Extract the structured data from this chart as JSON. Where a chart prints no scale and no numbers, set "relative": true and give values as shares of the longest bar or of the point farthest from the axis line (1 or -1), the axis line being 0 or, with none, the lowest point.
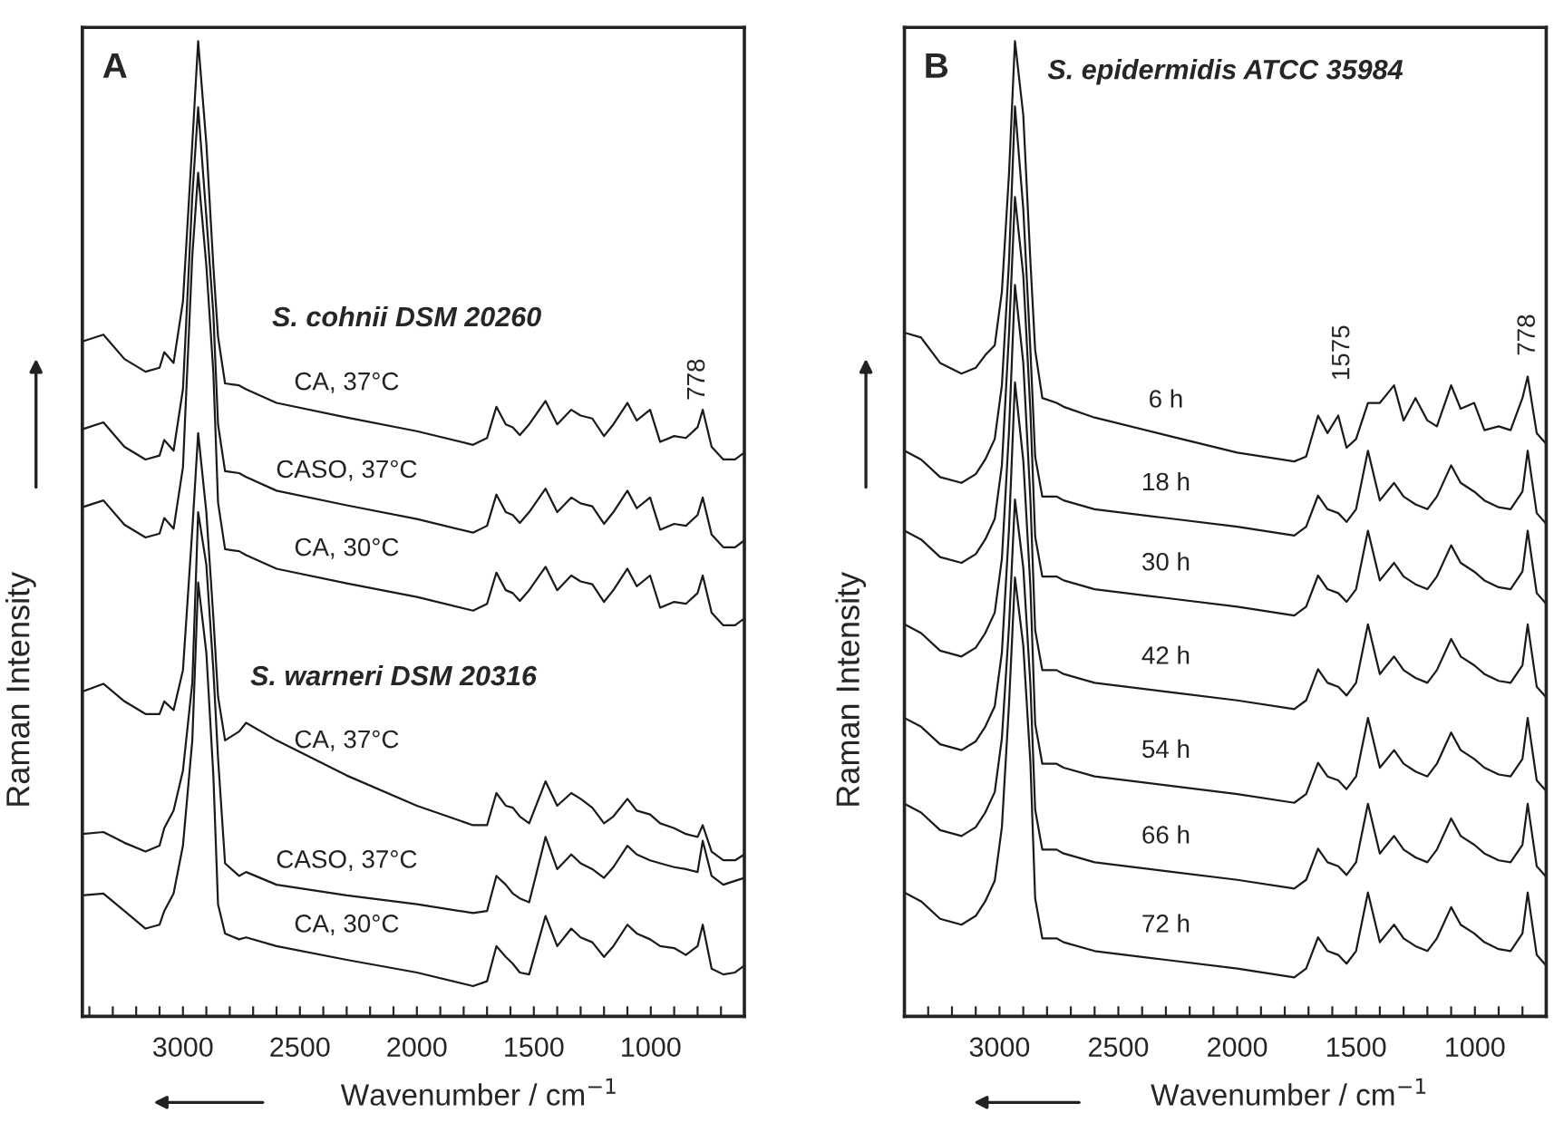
{
  "chart_data": [
    {
      "type": "line",
      "title": "A",
      "xlabel": "Wavenumber / cm$^{−1}$",
      "ylabel": "Raman Intensity",
      "relative": true,
      "line_style": "solid",
      "xlim": [
        3430,
        600
      ],
      "xticks": [
        {
          "value": 3400,
          "label": null
        },
        {
          "value": 3300,
          "label": null
        },
        {
          "value": 3200,
          "label": null
        },
        {
          "value": 3100,
          "label": null
        },
        3000,
        {
          "value": 2900,
          "label": null
        },
        {
          "value": 2800,
          "label": null
        },
        {
          "value": 2700,
          "label": null
        },
        {
          "value": 2600,
          "label": null
        },
        2500,
        {
          "value": 2400,
          "label": null
        },
        {
          "value": 2300,
          "label": null
        },
        {
          "value": 2200,
          "label": null
        },
        {
          "value": 2100,
          "label": null
        },
        2000,
        {
          "value": 1900,
          "label": null
        },
        {
          "value": 1800,
          "label": null
        },
        {
          "value": 1700,
          "label": null
        },
        {
          "value": 1600,
          "label": null
        },
        1500,
        {
          "value": 1400,
          "label": null
        },
        {
          "value": 1300,
          "label": null
        },
        {
          "value": 1200,
          "label": null
        },
        {
          "value": 1100,
          "label": null
        },
        1000,
        {
          "value": 900,
          "label": null
        },
        {
          "value": 800,
          "label": null
        },
        {
          "value": 700,
          "label": null
        }
      ],
      "annotations": [
        "S. cohnii DSM 20260",
        "S. warneri DSM 20316",
        "778"
      ],
      "x": [
        3430,
        3340,
        3250,
        3160,
        3100,
        3080,
        3040,
        3000,
        2960,
        2935,
        2900,
        2870,
        2850,
        2820,
        2760,
        2730,
        2600,
        2300,
        2000,
        1760,
        1700,
        1660,
        1620,
        1590,
        1560,
        1520,
        1450,
        1400,
        1340,
        1300,
        1250,
        1200,
        1160,
        1100,
        1060,
        1003,
        960,
        900,
        850,
        800,
        778,
        740,
        690,
        640,
        600
      ],
      "series": [
        {
          "name": "CA, 37°C",
          "color": "#1a1a1a",
          "values": [
            0.692,
            0.699,
            0.674,
            0.661,
            0.665,
            0.681,
            0.67,
            0.733,
            0.895,
            1.0,
            0.895,
            0.769,
            0.697,
            0.649,
            0.647,
            0.643,
            0.629,
            0.614,
            0.6,
            0.586,
            0.593,
            0.625,
            0.607,
            0.604,
            0.596,
            0.607,
            0.631,
            0.607,
            0.622,
            0.616,
            0.613,
            0.595,
            0.607,
            0.629,
            0.611,
            0.622,
            0.589,
            0.595,
            0.593,
            0.604,
            0.622,
            0.584,
            0.571,
            0.571,
            0.578
          ]
        },
        {
          "name": "CASO, 37°C",
          "color": "#1a1a1a",
          "values": [
            0.602,
            0.609,
            0.584,
            0.571,
            0.575,
            0.591,
            0.58,
            0.643,
            0.841,
            0.932,
            0.82,
            0.72,
            0.607,
            0.559,
            0.557,
            0.553,
            0.539,
            0.524,
            0.51,
            0.496,
            0.503,
            0.535,
            0.517,
            0.514,
            0.506,
            0.517,
            0.541,
            0.517,
            0.532,
            0.526,
            0.523,
            0.505,
            0.517,
            0.539,
            0.521,
            0.532,
            0.499,
            0.505,
            0.503,
            0.514,
            0.532,
            0.494,
            0.481,
            0.481,
            0.488
          ]
        },
        {
          "name": "CA, 30°C",
          "color": "#1a1a1a",
          "values": [
            0.522,
            0.529,
            0.504,
            0.491,
            0.495,
            0.511,
            0.5,
            0.563,
            0.78,
            0.865,
            0.77,
            0.66,
            0.527,
            0.479,
            0.477,
            0.473,
            0.459,
            0.444,
            0.43,
            0.416,
            0.423,
            0.455,
            0.437,
            0.434,
            0.426,
            0.437,
            0.461,
            0.437,
            0.452,
            0.446,
            0.443,
            0.425,
            0.437,
            0.459,
            0.441,
            0.452,
            0.419,
            0.425,
            0.423,
            0.434,
            0.452,
            0.414,
            0.401,
            0.401,
            0.408
          ]
        },
        {
          "name": "CA, 37°C",
          "color": "#1a1a1a",
          "values": [
            0.333,
            0.341,
            0.323,
            0.31,
            0.31,
            0.323,
            0.314,
            0.355,
            0.499,
            0.598,
            0.517,
            0.409,
            0.328,
            0.283,
            0.292,
            0.301,
            0.283,
            0.247,
            0.216,
            0.196,
            0.196,
            0.229,
            0.216,
            0.214,
            0.205,
            0.198,
            0.241,
            0.216,
            0.229,
            0.223,
            0.214,
            0.198,
            0.205,
            0.223,
            0.211,
            0.207,
            0.198,
            0.193,
            0.187,
            0.184,
            0.196,
            0.169,
            0.16,
            0.16,
            0.166
          ]
        },
        {
          "name": "CASO, 37°C",
          "color": "#1a1a1a",
          "values": [
            0.187,
            0.189,
            0.178,
            0.169,
            0.175,
            0.193,
            0.211,
            0.252,
            0.342,
            0.517,
            0.463,
            0.355,
            0.265,
            0.157,
            0.144,
            0.148,
            0.135,
            0.124,
            0.115,
            0.106,
            0.108,
            0.144,
            0.135,
            0.126,
            0.121,
            0.117,
            0.184,
            0.151,
            0.166,
            0.157,
            0.151,
            0.142,
            0.153,
            0.175,
            0.166,
            0.16,
            0.157,
            0.153,
            0.151,
            0.148,
            0.18,
            0.144,
            0.135,
            0.139,
            0.142
          ]
        },
        {
          "name": "CA, 30°C",
          "color": "#1a1a1a",
          "values": [
            0.124,
            0.126,
            0.108,
            0.09,
            0.094,
            0.108,
            0.126,
            0.175,
            0.283,
            0.445,
            0.373,
            0.247,
            0.115,
            0.085,
            0.079,
            0.081,
            0.072,
            0.058,
            0.045,
            0.031,
            0.036,
            0.072,
            0.061,
            0.054,
            0.045,
            0.043,
            0.103,
            0.072,
            0.09,
            0.081,
            0.076,
            0.061,
            0.072,
            0.094,
            0.085,
            0.079,
            0.072,
            0.07,
            0.063,
            0.072,
            0.094,
            0.049,
            0.043,
            0.045,
            0.052
          ]
        }
      ]
    },
    {
      "type": "line",
      "title": "B",
      "xlabel": "Wavenumber / cm$^{−1}$",
      "ylabel": "Raman Intensity",
      "relative": true,
      "line_style": "solid",
      "xlim": [
        3400,
        700
      ],
      "xticks": [
        {
          "value": 3300,
          "label": null
        },
        {
          "value": 3200,
          "label": null
        },
        {
          "value": 3100,
          "label": null
        },
        3000,
        {
          "value": 2900,
          "label": null
        },
        {
          "value": 2800,
          "label": null
        },
        {
          "value": 2700,
          "label": null
        },
        {
          "value": 2600,
          "label": null
        },
        2500,
        {
          "value": 2400,
          "label": null
        },
        {
          "value": 2300,
          "label": null
        },
        {
          "value": 2200,
          "label": null
        },
        {
          "value": 2100,
          "label": null
        },
        2000,
        {
          "value": 1900,
          "label": null
        },
        {
          "value": 1800,
          "label": null
        },
        {
          "value": 1700,
          "label": null
        },
        {
          "value": 1600,
          "label": null
        },
        1500,
        {
          "value": 1400,
          "label": null
        },
        {
          "value": 1300,
          "label": null
        },
        {
          "value": 1200,
          "label": null
        },
        {
          "value": 1100,
          "label": null
        },
        1000,
        {
          "value": 900,
          "label": null
        },
        {
          "value": 800,
          "label": null
        }
      ],
      "annotations": [
        "S. epidermidis ATCC 35984",
        "1575",
        "778"
      ],
      "x": [
        3400,
        3330,
        3250,
        3160,
        3100,
        3060,
        3020,
        2990,
        2960,
        2935,
        2900,
        2870,
        2850,
        2820,
        2760,
        2730,
        2600,
        2300,
        2000,
        1760,
        1710,
        1660,
        1620,
        1575,
        1540,
        1500,
        1450,
        1400,
        1340,
        1300,
        1250,
        1200,
        1160,
        1100,
        1060,
        1003,
        960,
        900,
        850,
        800,
        778,
        740,
        700
      ],
      "series": [
        {
          "name": "6 h",
          "color": "#1a1a1a",
          "values": [
            0.701,
            0.696,
            0.67,
            0.659,
            0.665,
            0.678,
            0.688,
            0.743,
            0.864,
            1.0,
            0.924,
            0.774,
            0.683,
            0.634,
            0.629,
            0.625,
            0.614,
            0.596,
            0.578,
            0.569,
            0.574,
            0.616,
            0.598,
            0.616,
            0.583,
            0.592,
            0.629,
            0.629,
            0.647,
            0.611,
            0.634,
            0.611,
            0.605,
            0.647,
            0.623,
            0.629,
            0.601,
            0.605,
            0.601,
            0.634,
            0.656,
            0.598,
            0.587
          ]
        },
        {
          "name": "18 h",
          "color": "#1a1a1a",
          "values": [
            0.58,
            0.571,
            0.553,
            0.547,
            0.556,
            0.571,
            0.592,
            0.647,
            0.774,
            0.933,
            0.828,
            0.683,
            0.574,
            0.533,
            0.533,
            0.529,
            0.52,
            0.511,
            0.502,
            0.493,
            0.502,
            0.534,
            0.52,
            0.516,
            0.507,
            0.52,
            0.58,
            0.529,
            0.547,
            0.533,
            0.525,
            0.52,
            0.533,
            0.565,
            0.547,
            0.538,
            0.529,
            0.522,
            0.52,
            0.538,
            0.58,
            0.516,
            0.505
          ]
        },
        {
          "name": "30 h",
          "color": "#1a1a1a",
          "values": [
            0.498,
            0.489,
            0.471,
            0.465,
            0.474,
            0.489,
            0.51,
            0.565,
            0.7,
            0.84,
            0.76,
            0.62,
            0.492,
            0.451,
            0.451,
            0.447,
            0.438,
            0.429,
            0.42,
            0.411,
            0.42,
            0.452,
            0.438,
            0.434,
            0.425,
            0.438,
            0.498,
            0.447,
            0.465,
            0.451,
            0.443,
            0.438,
            0.451,
            0.483,
            0.465,
            0.456,
            0.447,
            0.44,
            0.438,
            0.456,
            0.498,
            0.434,
            0.423
          ]
        },
        {
          "name": "42 h",
          "color": "#1a1a1a",
          "values": [
            0.402,
            0.393,
            0.375,
            0.369,
            0.378,
            0.393,
            0.414,
            0.469,
            0.6,
            0.75,
            0.67,
            0.53,
            0.396,
            0.355,
            0.355,
            0.351,
            0.342,
            0.333,
            0.324,
            0.315,
            0.324,
            0.356,
            0.342,
            0.338,
            0.329,
            0.342,
            0.402,
            0.351,
            0.369,
            0.355,
            0.347,
            0.342,
            0.355,
            0.387,
            0.369,
            0.36,
            0.351,
            0.344,
            0.342,
            0.36,
            0.402,
            0.338,
            0.327
          ]
        },
        {
          "name": "54 h",
          "color": "#1a1a1a",
          "values": [
            0.306,
            0.297,
            0.279,
            0.273,
            0.282,
            0.297,
            0.318,
            0.373,
            0.5,
            0.65,
            0.57,
            0.44,
            0.3,
            0.259,
            0.259,
            0.255,
            0.246,
            0.237,
            0.228,
            0.219,
            0.228,
            0.26,
            0.246,
            0.242,
            0.233,
            0.246,
            0.306,
            0.255,
            0.273,
            0.259,
            0.251,
            0.246,
            0.259,
            0.291,
            0.273,
            0.264,
            0.255,
            0.248,
            0.246,
            0.264,
            0.306,
            0.242,
            0.231
          ]
        },
        {
          "name": "66 h",
          "color": "#1a1a1a",
          "values": [
            0.218,
            0.209,
            0.191,
            0.185,
            0.194,
            0.209,
            0.23,
            0.285,
            0.4,
            0.53,
            0.46,
            0.34,
            0.212,
            0.171,
            0.171,
            0.167,
            0.158,
            0.149,
            0.14,
            0.131,
            0.14,
            0.172,
            0.158,
            0.154,
            0.145,
            0.158,
            0.218,
            0.167,
            0.185,
            0.171,
            0.163,
            0.158,
            0.171,
            0.203,
            0.185,
            0.176,
            0.167,
            0.16,
            0.158,
            0.176,
            0.218,
            0.154,
            0.143
          ]
        },
        {
          "name": "72 h",
          "color": "#1a1a1a",
          "values": [
            0.127,
            0.118,
            0.1,
            0.094,
            0.103,
            0.118,
            0.139,
            0.194,
            0.32,
            0.45,
            0.38,
            0.26,
            0.121,
            0.08,
            0.08,
            0.076,
            0.067,
            0.058,
            0.049,
            0.04,
            0.049,
            0.081,
            0.067,
            0.063,
            0.054,
            0.067,
            0.127,
            0.076,
            0.094,
            0.08,
            0.072,
            0.067,
            0.08,
            0.112,
            0.094,
            0.085,
            0.076,
            0.069,
            0.067,
            0.085,
            0.127,
            0.063,
            0.052
          ]
        }
      ]
    }
  ]
}
